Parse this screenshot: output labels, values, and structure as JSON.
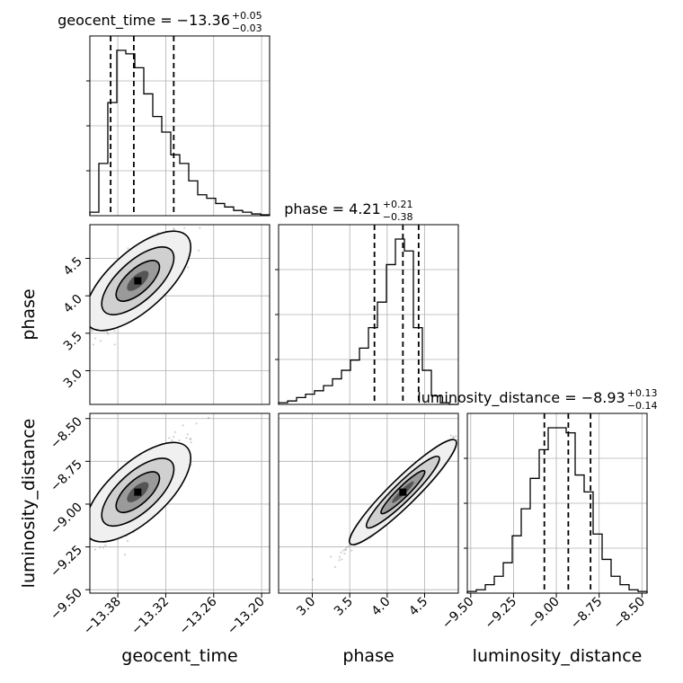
{
  "chart_data": {
    "type": "corner",
    "parameters": [
      "geocent_time",
      "phase",
      "luminosity_distance"
    ],
    "titles": [
      {
        "text": "geocent_time = −13.36",
        "plus": "+0.05",
        "minus": "−0.03"
      },
      {
        "text": "phase = 4.21",
        "plus": "+0.21",
        "minus": "−0.38"
      },
      {
        "text": "luminosity_distance = −8.93",
        "plus": "+0.13",
        "minus": "−0.14"
      }
    ],
    "axis_labels": {
      "x": [
        "geocent_time",
        "phase",
        "luminosity_distance"
      ],
      "y": [
        "phase",
        "luminosity_distance"
      ]
    },
    "ranges": {
      "geocent_time": [
        -13.415,
        -13.19
      ],
      "phase": [
        2.55,
        4.95
      ],
      "luminosity_distance": [
        -9.52,
        -8.47
      ]
    },
    "ticks": {
      "geocent_time": [
        -13.38,
        -13.32,
        -13.26,
        -13.2
      ],
      "phase": [
        3.0,
        3.5,
        4.0,
        4.5
      ],
      "luminosity_distance": [
        -9.5,
        -9.25,
        -9.0,
        -8.75,
        -8.5
      ]
    },
    "tick_labels": {
      "geocent_time": [
        "−13.38",
        "−13.32",
        "−13.26",
        "−13.20"
      ],
      "phase": [
        "3.0",
        "3.5",
        "4.0",
        "4.5"
      ],
      "luminosity_distance": [
        "−9.50",
        "−9.25",
        "−9.00",
        "−8.75",
        "−8.50"
      ]
    },
    "quantiles": {
      "geocent_time": [
        -13.389,
        -13.36,
        -13.31
      ],
      "phase": [
        3.83,
        4.21,
        4.42
      ],
      "luminosity_distance": [
        -9.07,
        -8.93,
        -8.8
      ]
    },
    "histograms": {
      "geocent_time": [
        0.02,
        0.3,
        0.65,
        0.95,
        0.93,
        0.85,
        0.7,
        0.57,
        0.48,
        0.35,
        0.3,
        0.2,
        0.12,
        0.1,
        0.07,
        0.05,
        0.03,
        0.02,
        0.01,
        0.005
      ],
      "phase": [
        0.01,
        0.02,
        0.04,
        0.06,
        0.08,
        0.11,
        0.15,
        0.2,
        0.26,
        0.33,
        0.45,
        0.6,
        0.82,
        0.97,
        0.9,
        0.45,
        0.2,
        0.05,
        0.01,
        0.0
      ],
      "luminosity_distance": [
        0.01,
        0.02,
        0.05,
        0.1,
        0.18,
        0.34,
        0.5,
        0.68,
        0.85,
        0.98,
        0.98,
        0.95,
        0.7,
        0.6,
        0.35,
        0.2,
        0.1,
        0.05,
        0.02,
        0.01
      ]
    },
    "pair_density": [
      {
        "x": "geocent_time",
        "y": "phase",
        "mean": [
          -13.355,
          4.2
        ],
        "sd": [
          0.028,
          0.32
        ],
        "rho": 0.85
      },
      {
        "x": "geocent_time",
        "y": "luminosity_distance",
        "mean": [
          -13.355,
          -8.93
        ],
        "sd": [
          0.028,
          0.14
        ],
        "rho": 0.85
      },
      {
        "x": "phase",
        "y": "luminosity_distance",
        "mean": [
          4.21,
          -8.93
        ],
        "sd": [
          0.32,
          0.14
        ],
        "rho": 0.98
      }
    ],
    "grid": true
  }
}
